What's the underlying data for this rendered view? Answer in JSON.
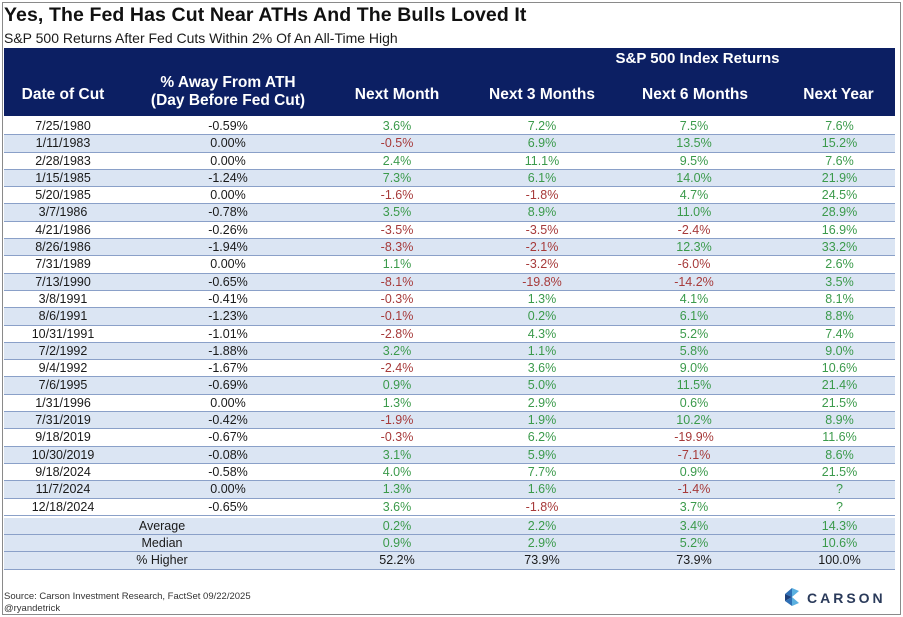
{
  "title": "Yes, The Fed Has Cut Near ATHs And The Bulls Loved It",
  "subtitle": "S&P 500 Returns After Fed Cuts Within 2% Of An All-Time High",
  "header": {
    "group": "S&P 500 Index Returns",
    "date": "Date of Cut",
    "ath_line1": "% Away From ATH",
    "ath_line2": "(Day Before Fed Cut)",
    "m1": "Next Month",
    "m3": "Next 3 Months",
    "m6": "Next 6 Months",
    "y1": "Next Year"
  },
  "rows": [
    {
      "date": "7/25/1980",
      "ath": "-0.59%",
      "m1": "3.6%",
      "m3": "7.2%",
      "m6": "7.5%",
      "y1": "7.6%"
    },
    {
      "date": "1/11/1983",
      "ath": "0.00%",
      "m1": "-0.5%",
      "m3": "6.9%",
      "m6": "13.5%",
      "y1": "15.2%"
    },
    {
      "date": "2/28/1983",
      "ath": "0.00%",
      "m1": "2.4%",
      "m3": "11.1%",
      "m6": "9.5%",
      "y1": "7.6%"
    },
    {
      "date": "1/15/1985",
      "ath": "-1.24%",
      "m1": "7.3%",
      "m3": "6.1%",
      "m6": "14.0%",
      "y1": "21.9%"
    },
    {
      "date": "5/20/1985",
      "ath": "0.00%",
      "m1": "-1.6%",
      "m3": "-1.8%",
      "m6": "4.7%",
      "y1": "24.5%"
    },
    {
      "date": "3/7/1986",
      "ath": "-0.78%",
      "m1": "3.5%",
      "m3": "8.9%",
      "m6": "11.0%",
      "y1": "28.9%"
    },
    {
      "date": "4/21/1986",
      "ath": "-0.26%",
      "m1": "-3.5%",
      "m3": "-3.5%",
      "m6": "-2.4%",
      "y1": "16.9%"
    },
    {
      "date": "8/26/1986",
      "ath": "-1.94%",
      "m1": "-8.3%",
      "m3": "-2.1%",
      "m6": "12.3%",
      "y1": "33.2%"
    },
    {
      "date": "7/31/1989",
      "ath": "0.00%",
      "m1": "1.1%",
      "m3": "-3.2%",
      "m6": "-6.0%",
      "y1": "2.6%"
    },
    {
      "date": "7/13/1990",
      "ath": "-0.65%",
      "m1": "-8.1%",
      "m3": "-19.8%",
      "m6": "-14.2%",
      "y1": "3.5%"
    },
    {
      "date": "3/8/1991",
      "ath": "-0.41%",
      "m1": "-0.3%",
      "m3": "1.3%",
      "m6": "4.1%",
      "y1": "8.1%"
    },
    {
      "date": "8/6/1991",
      "ath": "-1.23%",
      "m1": "-0.1%",
      "m3": "0.2%",
      "m6": "6.1%",
      "y1": "8.8%"
    },
    {
      "date": "10/31/1991",
      "ath": "-1.01%",
      "m1": "-2.8%",
      "m3": "4.3%",
      "m6": "5.2%",
      "y1": "7.4%"
    },
    {
      "date": "7/2/1992",
      "ath": "-1.88%",
      "m1": "3.2%",
      "m3": "1.1%",
      "m6": "5.8%",
      "y1": "9.0%"
    },
    {
      "date": "9/4/1992",
      "ath": "-1.67%",
      "m1": "-2.4%",
      "m3": "3.6%",
      "m6": "9.0%",
      "y1": "10.6%"
    },
    {
      "date": "7/6/1995",
      "ath": "-0.69%",
      "m1": "0.9%",
      "m3": "5.0%",
      "m6": "11.5%",
      "y1": "21.4%"
    },
    {
      "date": "1/31/1996",
      "ath": "0.00%",
      "m1": "1.3%",
      "m3": "2.9%",
      "m6": "0.6%",
      "y1": "21.5%"
    },
    {
      "date": "7/31/2019",
      "ath": "-0.42%",
      "m1": "-1.9%",
      "m3": "1.9%",
      "m6": "10.2%",
      "y1": "8.9%"
    },
    {
      "date": "9/18/2019",
      "ath": "-0.67%",
      "m1": "-0.3%",
      "m3": "6.2%",
      "m6": "-19.9%",
      "y1": "11.6%"
    },
    {
      "date": "10/30/2019",
      "ath": "-0.08%",
      "m1": "3.1%",
      "m3": "5.9%",
      "m6": "-7.1%",
      "y1": "8.6%"
    },
    {
      "date": "9/18/2024",
      "ath": "-0.58%",
      "m1": "4.0%",
      "m3": "7.7%",
      "m6": "0.9%",
      "y1": "21.5%"
    },
    {
      "date": "11/7/2024",
      "ath": "0.00%",
      "m1": "1.3%",
      "m3": "1.6%",
      "m6": "-1.4%",
      "y1": "?"
    },
    {
      "date": "12/18/2024",
      "ath": "-0.65%",
      "m1": "3.6%",
      "m3": "-1.8%",
      "m6": "3.7%",
      "y1": "?"
    }
  ],
  "summary": [
    {
      "label": "Average",
      "m1": "0.2%",
      "m3": "2.2%",
      "m6": "3.4%",
      "y1": "14.3%",
      "style": "pos"
    },
    {
      "label": "Median",
      "m1": "0.9%",
      "m3": "2.9%",
      "m6": "5.2%",
      "y1": "10.6%",
      "style": "pos"
    },
    {
      "label": "% Higher",
      "m1": "52.2%",
      "m3": "73.9%",
      "m6": "73.9%",
      "y1": "100.0%",
      "style": "neu"
    }
  ],
  "footer": {
    "source": "Source: Carson Investment Research, FactSet 09/22/2025",
    "handle": "@ryandetrick"
  },
  "logo": {
    "text": "CARSON"
  },
  "colors": {
    "header_bg": "#0c1f63",
    "positive": "#3b9a4b",
    "negative": "#a63a3a",
    "row_shade": "#dbe5f3"
  }
}
